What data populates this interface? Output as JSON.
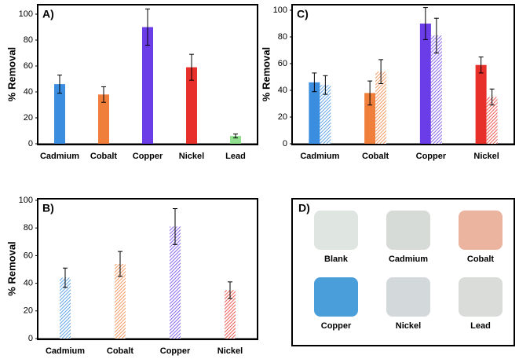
{
  "chart_data": [
    {
      "type": "bar",
      "label": "A)",
      "ylabel": "% Removal",
      "categories": [
        "Cadmium",
        "Cobalt",
        "Copper",
        "Nickel",
        "Lead"
      ],
      "ylim": [
        0,
        100
      ],
      "yticks": [
        0,
        20,
        40,
        60,
        80,
        100
      ],
      "series": [
        {
          "hatch": false,
          "colors": [
            "#3b8de0",
            "#f07f3c",
            "#6a3de8",
            "#e8302a",
            "#90e090"
          ],
          "values": [
            46,
            38,
            90,
            59,
            6
          ],
          "errors": [
            7,
            6,
            14,
            10,
            1.5
          ]
        }
      ]
    },
    {
      "type": "bar",
      "label": "B)",
      "ylabel": "% Removal",
      "categories": [
        "Cadmium",
        "Cobalt",
        "Copper",
        "Nickel"
      ],
      "ylim": [
        0,
        100
      ],
      "yticks": [
        0,
        20,
        40,
        60,
        80,
        100
      ],
      "series": [
        {
          "hatch": true,
          "colors": [
            "#3b8de0",
            "#f07f3c",
            "#6a3de8",
            "#e8302a"
          ],
          "values": [
            44,
            54,
            81,
            35
          ],
          "errors": [
            7,
            9,
            13,
            6
          ]
        }
      ]
    },
    {
      "type": "bar",
      "label": "C)",
      "ylabel": "% Removal",
      "categories": [
        "Cadmium",
        "Cobalt",
        "Copper",
        "Nickel"
      ],
      "ylim": [
        0,
        100
      ],
      "yticks": [
        0,
        20,
        40,
        60,
        80,
        100
      ],
      "series": [
        {
          "hatch": false,
          "colors": [
            "#3b8de0",
            "#f07f3c",
            "#6a3de8",
            "#e8302a"
          ],
          "values": [
            46,
            38,
            90,
            59
          ],
          "errors": [
            7,
            9,
            12,
            6
          ]
        },
        {
          "hatch": true,
          "colors": [
            "#3b8de0",
            "#f07f3c",
            "#6a3de8",
            "#e8302a"
          ],
          "values": [
            44,
            54,
            81,
            35
          ],
          "errors": [
            7,
            9,
            13,
            6
          ]
        }
      ]
    }
  ],
  "panel_d": {
    "label": "D)",
    "samples": [
      "Blank",
      "Cadmium",
      "Cobalt",
      "Copper",
      "Nickel",
      "Lead"
    ]
  }
}
